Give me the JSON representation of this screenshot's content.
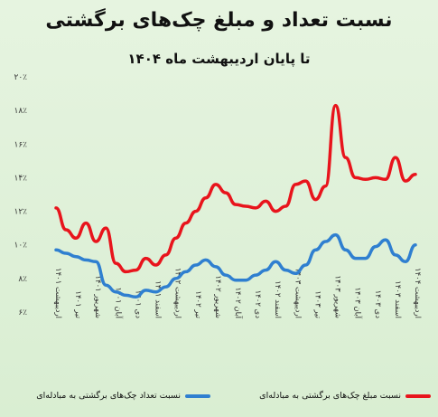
{
  "colors": {
    "count_line": "#2f7fd0",
    "amount_line": "#e8141c",
    "background": "#dff0d8"
  },
  "chart_data": {
    "type": "line",
    "title": "نسبت تعداد و مبلغ چک‌های برگشتی",
    "subtitle": "تا پایان اردیبهشت ماه ۱۴۰۴",
    "y_tick_labels": [
      "۶٪",
      "۸٪",
      "۱۰٪",
      "۱۲٪",
      "۱۴٪",
      "۱۶٪",
      "۱۸٪",
      "۲۰٪"
    ],
    "ylim": [
      6,
      20
    ],
    "x_tick_labels": [
      "اردیبهشت ۱۴۰۱",
      "تیر ۱۴۰۱",
      "شهریور ۱۴۰۱",
      "آبان ۱۴۰۱",
      "دی ۱۴۰۱",
      "اسفند ۱۴۰۱",
      "اردیبهشت ۱۴۰۲",
      "تیر ۱۴۰۲",
      "شهریور ۱۴۰۲",
      "آبان ۱۴۰۲",
      "دی ۱۴۰۲",
      "اسفند ۱۴۰۲",
      "اردیبهشت ۱۴۰۳",
      "تیر ۱۴۰۳",
      "شهریور ۱۴۰۳",
      "آبان ۱۴۰۳",
      "دی ۱۴۰۳",
      "اسفند ۱۴۰۳",
      "اردیبهشت ۱۴۰۴"
    ],
    "x": [
      0,
      1,
      2,
      3,
      4,
      5,
      6,
      7,
      8,
      9,
      10,
      11,
      12,
      13,
      14,
      15,
      16,
      17,
      18,
      19,
      20,
      21,
      22,
      23,
      24,
      25,
      26,
      27,
      28,
      29,
      30,
      31,
      32,
      33,
      34,
      35,
      36
    ],
    "series": [
      {
        "name": "نسبت مبلغ چک‌های برگشتی به مبادله‌ای",
        "color": "#e8141c",
        "values": [
          12.2,
          10.9,
          10.4,
          11.3,
          10.2,
          11.0,
          8.9,
          8.4,
          8.5,
          9.2,
          8.8,
          9.4,
          10.4,
          11.3,
          12.0,
          12.8,
          13.6,
          13.1,
          12.4,
          12.3,
          12.2,
          12.6,
          12.0,
          12.3,
          13.6,
          13.8,
          12.7,
          13.5,
          18.3,
          15.2,
          14.0,
          13.9,
          14.0,
          13.9,
          15.2,
          13.8,
          14.2
        ]
      },
      {
        "name": "نسبت تعداد چک‌های برگشتی به مبادله‌ای",
        "color": "#2f7fd0",
        "values": [
          9.7,
          9.5,
          9.3,
          9.1,
          9.0,
          7.6,
          7.2,
          7.0,
          6.9,
          7.3,
          7.2,
          7.5,
          8.0,
          8.4,
          8.8,
          9.1,
          8.7,
          8.2,
          7.9,
          7.9,
          8.2,
          8.5,
          9.0,
          8.5,
          8.3,
          8.8,
          9.7,
          10.2,
          10.6,
          9.7,
          9.2,
          9.2,
          9.9,
          10.3,
          9.4,
          9.0,
          10.0
        ]
      }
    ],
    "grid": false,
    "legend_position": "bottom"
  }
}
